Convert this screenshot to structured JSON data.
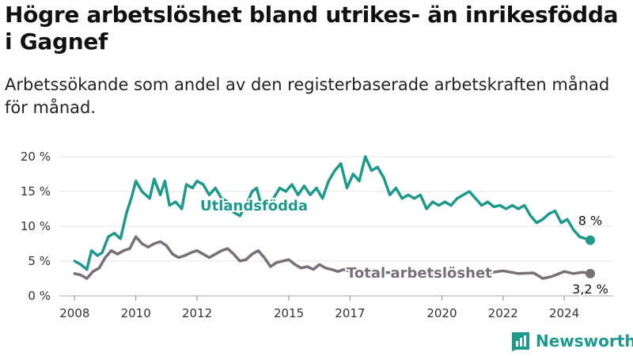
{
  "title": "Högre arbetslöshet bland utrikes- än inrikesfödda i Gagnef",
  "subtitle": "Arbetssökande som andel av den registerbaserade arbetskraften månad för månad.",
  "logo_text": "Newsworthy",
  "chart_data": {
    "type": "line",
    "ylim": [
      0,
      20
    ],
    "xlim": [
      2007.5,
      2025.6
    ],
    "y_ticks": [
      0,
      5,
      10,
      15,
      20
    ],
    "y_tick_labels": [
      "0 %",
      "5 %",
      "10 %",
      "15 %",
      "20 %"
    ],
    "x_ticks": [
      2008,
      2010,
      2012,
      2015,
      2017,
      2020,
      2022,
      2024
    ],
    "x_tick_labels": [
      "2008",
      "2010",
      "2012",
      "2015",
      "2017",
      "2020",
      "2022",
      "2024"
    ],
    "grid": true,
    "series": [
      {
        "name": "Utlandsfödda",
        "color": "#1e9a8c",
        "end_label": "8 %",
        "x": [
          2008.0,
          2008.2,
          2008.4,
          2008.55,
          2008.75,
          2008.9,
          2009.1,
          2009.3,
          2009.5,
          2009.7,
          2009.85,
          2010.0,
          2010.2,
          2010.45,
          2010.6,
          2010.8,
          2010.95,
          2011.1,
          2011.3,
          2011.5,
          2011.65,
          2011.85,
          2012.0,
          2012.2,
          2012.4,
          2012.6,
          2012.8,
          2013.0,
          2013.2,
          2013.4,
          2013.6,
          2013.8,
          2013.95,
          2014.1,
          2014.3,
          2014.5,
          2014.7,
          2014.9,
          2015.1,
          2015.3,
          2015.5,
          2015.7,
          2015.9,
          2016.1,
          2016.3,
          2016.5,
          2016.7,
          2016.9,
          2017.1,
          2017.3,
          2017.5,
          2017.7,
          2017.9,
          2018.1,
          2018.3,
          2018.5,
          2018.7,
          2018.9,
          2019.1,
          2019.3,
          2019.5,
          2019.7,
          2019.9,
          2020.1,
          2020.3,
          2020.5,
          2020.7,
          2020.9,
          2021.1,
          2021.3,
          2021.5,
          2021.7,
          2021.9,
          2022.1,
          2022.3,
          2022.5,
          2022.7,
          2022.9,
          2023.1,
          2023.3,
          2023.5,
          2023.7,
          2023.9,
          2024.1,
          2024.3,
          2024.5,
          2024.7,
          2024.85
        ],
        "y": [
          5.0,
          4.5,
          3.8,
          6.5,
          5.8,
          6.2,
          8.5,
          9.0,
          8.2,
          12.0,
          14.0,
          16.5,
          15.0,
          14.0,
          16.8,
          14.5,
          16.5,
          13.0,
          13.5,
          12.5,
          16.0,
          15.5,
          16.5,
          16.0,
          14.5,
          15.5,
          14.0,
          13.5,
          12.0,
          11.5,
          13.0,
          15.0,
          15.5,
          13.0,
          12.5,
          14.0,
          15.5,
          15.0,
          16.0,
          14.5,
          15.8,
          14.5,
          15.5,
          14.0,
          16.5,
          18.0,
          19.0,
          15.5,
          17.5,
          16.5,
          20.0,
          18.0,
          18.5,
          17.0,
          14.5,
          15.5,
          14.0,
          14.5,
          14.0,
          14.5,
          12.5,
          13.5,
          13.0,
          13.5,
          13.0,
          14.0,
          14.5,
          15.0,
          14.0,
          13.0,
          13.5,
          12.8,
          13.0,
          12.5,
          13.0,
          12.5,
          13.0,
          11.5,
          10.5,
          11.0,
          11.8,
          12.2,
          10.5,
          11.0,
          9.5,
          8.5,
          8.2,
          8.0
        ]
      },
      {
        "name": "Total arbetslöshet",
        "color": "#777077",
        "end_label": "3,2 %",
        "x": [
          2008.0,
          2008.2,
          2008.4,
          2008.6,
          2008.8,
          2009.0,
          2009.2,
          2009.4,
          2009.6,
          2009.8,
          2010.0,
          2010.2,
          2010.4,
          2010.6,
          2010.8,
          2011.0,
          2011.2,
          2011.4,
          2011.6,
          2011.8,
          2012.0,
          2012.2,
          2012.4,
          2012.6,
          2012.8,
          2013.0,
          2013.2,
          2013.4,
          2013.6,
          2013.8,
          2014.0,
          2014.2,
          2014.4,
          2014.6,
          2014.8,
          2015.0,
          2015.2,
          2015.4,
          2015.6,
          2015.8,
          2016.0,
          2016.2,
          2016.4,
          2016.6,
          2016.8,
          2017.0,
          2017.5,
          2018.0,
          2018.5,
          2019.0,
          2019.5,
          2020.0,
          2020.5,
          2021.0,
          2021.5,
          2022.0,
          2022.5,
          2023.0,
          2023.3,
          2023.6,
          2024.0,
          2024.3,
          2024.6,
          2024.85
        ],
        "y": [
          3.2,
          3.0,
          2.5,
          3.5,
          4.0,
          5.5,
          6.5,
          6.0,
          6.5,
          6.8,
          8.5,
          7.5,
          7.0,
          7.5,
          7.8,
          7.2,
          6.0,
          5.5,
          5.8,
          6.2,
          6.5,
          6.0,
          5.5,
          6.0,
          6.5,
          6.8,
          6.0,
          5.0,
          5.2,
          6.0,
          6.5,
          5.5,
          4.2,
          4.8,
          5.0,
          5.2,
          4.5,
          4.0,
          4.2,
          3.8,
          4.5,
          4.0,
          3.8,
          3.5,
          3.8,
          3.5,
          3.3,
          3.4,
          3.3,
          3.5,
          3.2,
          3.4,
          3.3,
          3.5,
          3.3,
          3.6,
          3.2,
          3.3,
          2.5,
          2.8,
          3.5,
          3.2,
          3.4,
          3.2
        ]
      }
    ]
  }
}
